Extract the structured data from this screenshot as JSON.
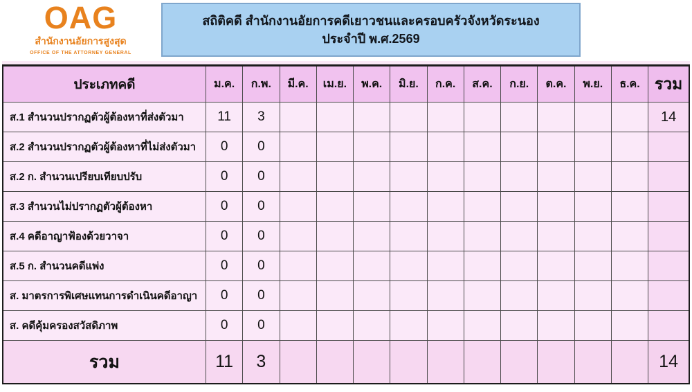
{
  "logo": {
    "acronym": "OAG",
    "thai_name": "สำนักงานอัยการสูงสุด",
    "english_name": "OFFICE OF THE ATTORNEY GENERAL"
  },
  "title_box": {
    "line1": "สถิติคดี สำนักงานอัยการคดีเยาวชนและครอบครัวจังหวัดระนอง",
    "line2": "ประจำปี พ.ศ.2569"
  },
  "table": {
    "header": {
      "case_type_label": "ประเภทคดี",
      "months": [
        "ม.ค.",
        "ก.พ.",
        "มี.ค.",
        "เม.ย.",
        "พ.ค.",
        "มิ.ย.",
        "ก.ค.",
        "ส.ค.",
        "ก.ย.",
        "ต.ค.",
        "พ.ย.",
        "ธ.ค."
      ],
      "total_label": "รวม"
    },
    "rows": [
      {
        "label": "ส.1 สำนวนปรากฏตัวผู้ต้องหาที่ส่งตัวมา",
        "values": [
          "11",
          "3",
          "",
          "",
          "",
          "",
          "",
          "",
          "",
          "",
          "",
          ""
        ],
        "total": "14"
      },
      {
        "label": "ส.2 สำนวนปรากฏตัวผู้ต้องหาที่ไม่ส่งตัวมา",
        "values": [
          "0",
          "0",
          "",
          "",
          "",
          "",
          "",
          "",
          "",
          "",
          "",
          ""
        ],
        "total": ""
      },
      {
        "label": "ส.2 ก. สำนวนเปรียบเทียบปรับ",
        "values": [
          "0",
          "0",
          "",
          "",
          "",
          "",
          "",
          "",
          "",
          "",
          "",
          ""
        ],
        "total": ""
      },
      {
        "label": "ส.3 สำนวนไม่ปรากฏตัวผู้ต้องหา",
        "values": [
          "0",
          "0",
          "",
          "",
          "",
          "",
          "",
          "",
          "",
          "",
          "",
          ""
        ],
        "total": ""
      },
      {
        "label": "ส.4 คดีอาญาฟ้องด้วยวาจา",
        "values": [
          "0",
          "0",
          "",
          "",
          "",
          "",
          "",
          "",
          "",
          "",
          "",
          ""
        ],
        "total": ""
      },
      {
        "label": "ส.5 ก. สำนวนคดีแพ่ง",
        "values": [
          "0",
          "0",
          "",
          "",
          "",
          "",
          "",
          "",
          "",
          "",
          "",
          ""
        ],
        "total": ""
      },
      {
        "label": "ส. มาตรการพิเศษแทนการดำเนินคดีอาญา",
        "values": [
          "0",
          "0",
          "",
          "",
          "",
          "",
          "",
          "",
          "",
          "",
          "",
          ""
        ],
        "total": ""
      },
      {
        "label": "ส. คดีคุ้มครองสวัสดิภาพ",
        "values": [
          "0",
          "0",
          "",
          "",
          "",
          "",
          "",
          "",
          "",
          "",
          "",
          ""
        ],
        "total": ""
      }
    ],
    "footer": {
      "label": "รวม",
      "values": [
        "11",
        "3",
        "",
        "",
        "",
        "",
        "",
        "",
        "",
        "",
        "",
        ""
      ],
      "total": "14"
    }
  },
  "colors": {
    "logo-orange": "#E8821E",
    "title-box-bg": "#A9D1F1",
    "title-box-border": "#7FA6CC",
    "table-header-bg": "#F1C2EF",
    "total-header-bg": "#EFBDED",
    "cell-bg": "#FBE9F9",
    "total-col-bg": "#F8DBF4",
    "footer-bg": "#F7D8F1",
    "footer-total-bg": "#F5D2EE",
    "grid-line": "#4A4A4A",
    "outer-border": "#1C1C1C",
    "text": "#111111"
  }
}
